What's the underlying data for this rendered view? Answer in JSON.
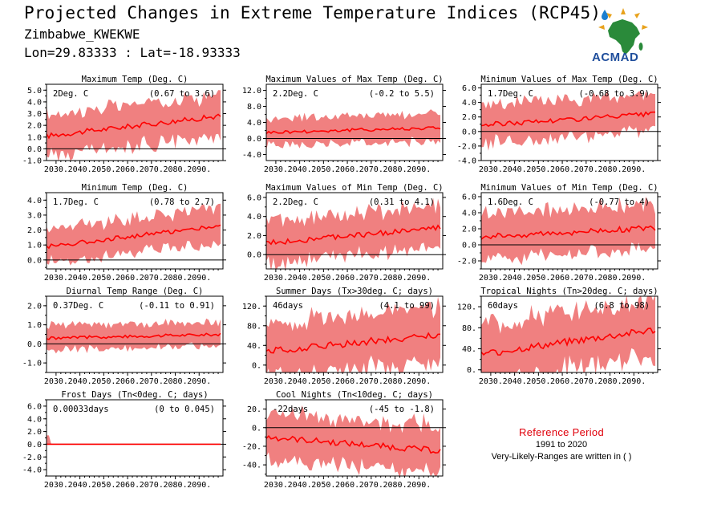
{
  "header": {
    "title": "Projected Changes in Extreme Temperature Indices (RCP45)",
    "location": "Zimbabwe_KWEKWE",
    "coords": "Lon=29.83333 : Lat=-18.93333"
  },
  "logo": {
    "text": "ACMAD"
  },
  "reference": {
    "title": "Reference Period",
    "years": "1991 to 2020",
    "note": "Very-Likely-Ranges are written in ( )"
  },
  "colors": {
    "band": "#f08080",
    "line": "#ff0000",
    "zero": "#000000"
  },
  "chart_data": [
    {
      "type": "area",
      "title": "Maximum Temp (Deg. C)",
      "mean_label": "2Deg. C",
      "range_label": "(0.67 to 3.6)",
      "x_ticks": [
        "2030.",
        "2040.",
        "2050.",
        "2060.",
        "2070.",
        "2080.",
        "2090."
      ],
      "x_range": [
        2026,
        2100
      ],
      "ylim": [
        -1.0,
        5.5
      ],
      "y_ticks": [
        -1.0,
        0.0,
        1.0,
        2.0,
        3.0,
        4.0,
        5.0
      ],
      "y_tick_labels": [
        "-1.0",
        "0.0",
        "1.0",
        "2.0",
        "3.0",
        "4.0",
        "5.0"
      ],
      "mean_start": 1.1,
      "mean_end": 2.8,
      "band_low": 0.67,
      "band_high": 3.6,
      "show_zero": true
    },
    {
      "type": "area",
      "title": "Maximum Values of Max Temp (Deg. C)",
      "mean_label": "2.2Deg. C",
      "range_label": "(-0.2 to 5.5)",
      "x_ticks": [
        "2030.",
        "2040.",
        "2050.",
        "2060.",
        "2070.",
        "2080.",
        "2090."
      ],
      "x_range": [
        2026,
        2100
      ],
      "ylim": [
        -5.5,
        13.5
      ],
      "y_ticks": [
        -4.0,
        0.0,
        4.0,
        8.0,
        12.0
      ],
      "y_tick_labels": [
        "-4.0",
        "0.0",
        "4.0",
        "8.0",
        "12.0"
      ],
      "mean_start": 1.5,
      "mean_end": 2.7,
      "band_low": -0.2,
      "band_high": 5.5,
      "show_zero": true
    },
    {
      "type": "area",
      "title": "Minimum Values of Max Temp (Deg. C)",
      "mean_label": "1.7Deg. C",
      "range_label": "(-0.68 to 3.9)",
      "x_ticks": [
        "2030.",
        "2040.",
        "2050.",
        "2060.",
        "2070.",
        "2080.",
        "2090."
      ],
      "x_range": [
        2026,
        2100
      ],
      "ylim": [
        -4.0,
        6.5
      ],
      "y_ticks": [
        -4.0,
        -2.0,
        0.0,
        2.0,
        4.0,
        6.0
      ],
      "y_tick_labels": [
        "-4.0",
        "-2.0",
        "0.0",
        "2.0",
        "4.0",
        "6.0"
      ],
      "mean_start": 0.9,
      "mean_end": 2.4,
      "band_low": -0.68,
      "band_high": 3.9,
      "show_zero": true
    },
    {
      "type": "area",
      "title": "Minimum Temp (Deg. C)",
      "mean_label": "1.7Deg. C",
      "range_label": "(0.78 to 2.7)",
      "x_ticks": [
        "2030.",
        "2040.",
        "2050.",
        "2060.",
        "2070.",
        "2080.",
        "2090."
      ],
      "x_range": [
        2026,
        2100
      ],
      "ylim": [
        -0.6,
        4.5
      ],
      "y_ticks": [
        0.0,
        1.0,
        2.0,
        3.0,
        4.0
      ],
      "y_tick_labels": [
        "0.0",
        "1.0",
        "2.0",
        "3.0",
        "4.0"
      ],
      "mean_start": 0.9,
      "mean_end": 2.3,
      "band_low": 0.78,
      "band_high": 2.7,
      "show_zero": true
    },
    {
      "type": "area",
      "title": "Maximum Values of Min Temp (Deg. C)",
      "mean_label": "2.2Deg. C",
      "range_label": "(0.31 to 4.1)",
      "x_ticks": [
        "2030.",
        "2040.",
        "2050.",
        "2060.",
        "2070.",
        "2080.",
        "2090."
      ],
      "x_range": [
        2026,
        2100
      ],
      "ylim": [
        -1.5,
        6.5
      ],
      "y_ticks": [
        0.0,
        2.0,
        4.0,
        6.0
      ],
      "y_tick_labels": [
        "0.0",
        "2.0",
        "4.0",
        "6.0"
      ],
      "mean_start": 1.2,
      "mean_end": 2.8,
      "band_low": 0.31,
      "band_high": 4.1,
      "show_zero": true
    },
    {
      "type": "area",
      "title": "Minimum Values of Min Temp (Deg. C)",
      "mean_label": "1.6Deg. C",
      "range_label": "(-0.77 to 4)",
      "x_ticks": [
        "2030.",
        "2040.",
        "2050.",
        "2060.",
        "2070.",
        "2080.",
        "2090."
      ],
      "x_range": [
        2026,
        2100
      ],
      "ylim": [
        -3.0,
        6.5
      ],
      "y_ticks": [
        -2.0,
        0.0,
        2.0,
        4.0,
        6.0
      ],
      "y_tick_labels": [
        "-2.0",
        "0.0",
        "2.0",
        "4.0",
        "6.0"
      ],
      "mean_start": 1.0,
      "mean_end": 2.1,
      "band_low": -0.77,
      "band_high": 4.0,
      "show_zero": true
    },
    {
      "type": "area",
      "title": "Diurnal Temp Range (Deg. C)",
      "mean_label": "0.37Deg. C",
      "range_label": "(-0.11 to 0.91)",
      "x_ticks": [
        "2030.",
        "2040.",
        "2050.",
        "2060.",
        "2070.",
        "2080.",
        "2090."
      ],
      "x_range": [
        2026,
        2100
      ],
      "ylim": [
        -1.5,
        2.5
      ],
      "y_ticks": [
        -1.0,
        0.0,
        1.0,
        2.0
      ],
      "y_tick_labels": [
        "-1.0",
        "0.0",
        "1.0",
        "2.0"
      ],
      "mean_start": 0.3,
      "mean_end": 0.5,
      "band_low": -0.11,
      "band_high": 0.91,
      "show_zero": true
    },
    {
      "type": "area",
      "title": "Summer Days (Tx>30deg. C; days)",
      "mean_label": "46days",
      "range_label": "(4.1 to 99)",
      "x_ticks": [
        "2030.",
        "2040.",
        "2050.",
        "2060.",
        "2070.",
        "2080.",
        "2090."
      ],
      "x_range": [
        2026,
        2100
      ],
      "ylim": [
        -15,
        140
      ],
      "y_ticks": [
        0,
        40,
        80,
        120
      ],
      "y_tick_labels": [
        "0.",
        "40.",
        "80.",
        "120."
      ],
      "mean_start": 28,
      "mean_end": 62,
      "band_low": 4.1,
      "band_high": 99,
      "show_zero": false
    },
    {
      "type": "area",
      "title": "Tropical Nights (Tn>20deg. C; days)",
      "mean_label": "60days",
      "range_label": "(6.8 to 98)",
      "x_ticks": [
        "2030.",
        "2040.",
        "2050.",
        "2060.",
        "2070.",
        "2080.",
        "2090."
      ],
      "x_range": [
        2026,
        2100
      ],
      "ylim": [
        -5,
        140
      ],
      "y_ticks": [
        0,
        40,
        80,
        120
      ],
      "y_tick_labels": [
        "0.",
        "40.",
        "80.",
        "120."
      ],
      "mean_start": 30,
      "mean_end": 76,
      "band_low": 6.8,
      "band_high": 98,
      "show_zero": false
    },
    {
      "type": "area",
      "title": "Frost Days (Tn<0deg. C; days)",
      "mean_label": "0.00033days",
      "range_label": "(0 to 0.045)",
      "x_ticks": [
        "2030.",
        "2040.",
        "2050.",
        "2060.",
        "2070.",
        "2080.",
        "2090."
      ],
      "x_range": [
        2026,
        2100
      ],
      "ylim": [
        -5.0,
        7.0
      ],
      "y_ticks": [
        -4.0,
        -2.0,
        0.0,
        2.0,
        4.0,
        6.0
      ],
      "y_tick_labels": [
        "-4.0",
        "-2.0",
        "0.0",
        "2.0",
        "4.0",
        "6.0"
      ],
      "mean_start": 0.0,
      "mean_end": 0.0,
      "band_low": 0.0,
      "band_high": 0.045,
      "show_zero": true
    },
    {
      "type": "area",
      "title": "Cool Nights (Tn<10deg. C; days)",
      "mean_label": "-22days",
      "range_label": "(-45 to -1.8)",
      "x_ticks": [
        "2030.",
        "2040.",
        "2050.",
        "2060.",
        "2070.",
        "2080.",
        "2090."
      ],
      "x_range": [
        2026,
        2100
      ],
      "ylim": [
        -52,
        30
      ],
      "y_ticks": [
        -40,
        -20,
        0,
        20
      ],
      "y_tick_labels": [
        "-40.",
        "-20.",
        "0.",
        "20."
      ],
      "mean_start": -10,
      "mean_end": -25,
      "band_low": -45,
      "band_high": -1.8,
      "show_zero": true
    }
  ]
}
